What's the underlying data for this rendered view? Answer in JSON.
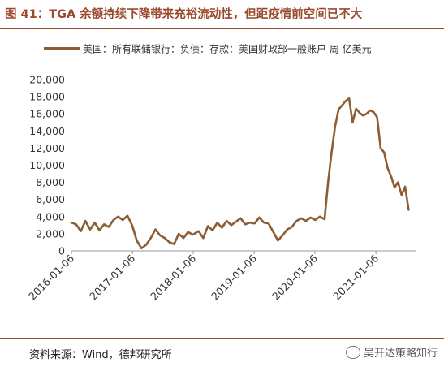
{
  "header": {
    "title": "图 41：TGA 余额持续下降带来充裕流动性，但距疫情前空间已不大"
  },
  "footer": {
    "source": "资料来源：Wind，德邦研究所",
    "watermark": "吴开达策略知行"
  },
  "colors": {
    "line": "#8b5e34",
    "accent": "#9a4a2c",
    "axis": "#999999"
  },
  "chart_data": {
    "type": "line",
    "legend_position": "top",
    "ylim": [
      0,
      20000
    ],
    "yticks": [
      "20,000",
      "18,000",
      "16,000",
      "14,000",
      "12,000",
      "10,000",
      "8,000",
      "6,000",
      "4,000",
      "2,000",
      "0"
    ],
    "xticks": [
      "2016-01-06",
      "2017-01-06",
      "2018-01-06",
      "2019-01-06",
      "2020-01-06",
      "2021-01-06"
    ],
    "grid": false,
    "series": [
      {
        "name": "美国：所有联储银行：负债：存款：美国财政部一般账户  周  亿美元",
        "x": [
          "2016-01-06",
          "2016-02-03",
          "2016-03-02",
          "2016-03-30",
          "2016-04-27",
          "2016-05-25",
          "2016-06-22",
          "2016-07-20",
          "2016-08-17",
          "2016-09-14",
          "2016-10-12",
          "2016-11-09",
          "2016-12-07",
          "2017-01-04",
          "2017-02-01",
          "2017-03-01",
          "2017-03-29",
          "2017-04-26",
          "2017-05-24",
          "2017-06-21",
          "2017-07-19",
          "2017-08-16",
          "2017-09-13",
          "2017-10-11",
          "2017-11-08",
          "2017-12-06",
          "2018-01-03",
          "2018-02-07",
          "2018-03-07",
          "2018-04-04",
          "2018-05-02",
          "2018-05-30",
          "2018-06-27",
          "2018-07-25",
          "2018-08-22",
          "2018-09-19",
          "2018-10-17",
          "2018-11-14",
          "2018-12-12",
          "2019-01-09",
          "2019-02-06",
          "2019-03-06",
          "2019-04-03",
          "2019-05-01",
          "2019-05-29",
          "2019-06-26",
          "2019-07-24",
          "2019-08-21",
          "2019-09-18",
          "2019-10-16",
          "2019-11-13",
          "2019-12-11",
          "2020-01-08",
          "2020-02-05",
          "2020-03-04",
          "2020-03-25",
          "2020-04-15",
          "2020-05-06",
          "2020-05-27",
          "2020-06-17",
          "2020-07-08",
          "2020-07-29",
          "2020-08-19",
          "2020-09-09",
          "2020-09-30",
          "2020-10-21",
          "2020-11-11",
          "2020-12-02",
          "2020-12-23",
          "2021-01-13",
          "2021-02-03",
          "2021-02-24",
          "2021-03-17",
          "2021-04-07",
          "2021-04-28",
          "2021-05-19",
          "2021-06-09",
          "2021-06-30",
          "2021-07-21"
        ],
        "values": [
          3300,
          3100,
          2300,
          3500,
          2500,
          3300,
          2400,
          3100,
          2800,
          3600,
          4000,
          3600,
          4100,
          3000,
          1200,
          300,
          700,
          1500,
          2500,
          1800,
          1500,
          1000,
          800,
          2000,
          1500,
          2200,
          1900,
          2300,
          1500,
          2900,
          2400,
          3300,
          2700,
          3500,
          3000,
          3400,
          3800,
          3100,
          3300,
          3200,
          3900,
          3300,
          3200,
          2200,
          1200,
          1800,
          2500,
          2800,
          3500,
          3800,
          3500,
          3900,
          3600,
          4000,
          3700,
          8000,
          11500,
          14500,
          16500,
          17000,
          17500,
          17800,
          15000,
          16600,
          16100,
          15800,
          16000,
          16400,
          16200,
          15600,
          12000,
          11500,
          9700,
          8700,
          7400,
          8000,
          6500,
          7500,
          4800
        ]
      }
    ]
  }
}
